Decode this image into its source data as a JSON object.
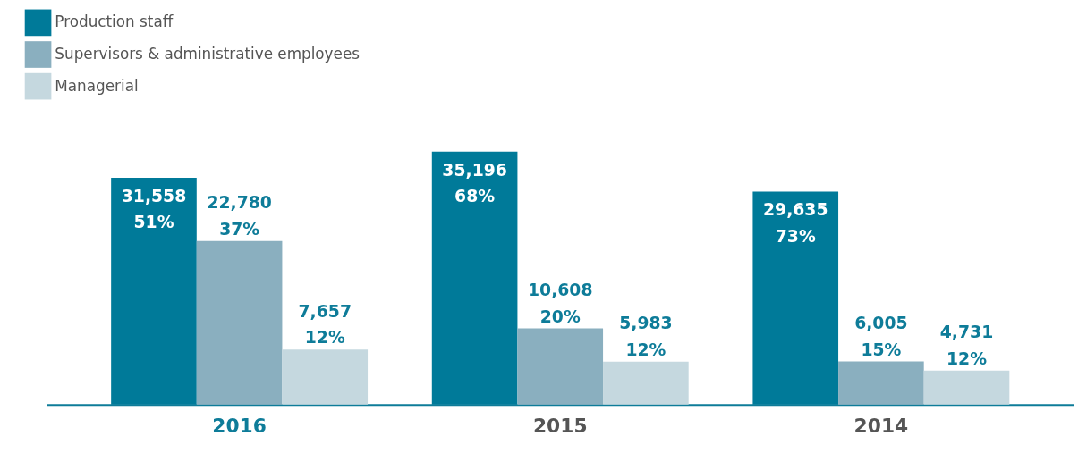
{
  "chart_data": {
    "type": "bar",
    "categories": [
      "2016",
      "2015",
      "2014"
    ],
    "series": [
      {
        "name": "Production staff",
        "color": "#007a99",
        "values": [
          31558,
          35196,
          29635
        ],
        "value_labels": [
          "31,558 51%",
          "35,196 68%",
          "29,635 73%"
        ]
      },
      {
        "name": "Supervisors & administrative employees",
        "color": "#8aafbf",
        "values": [
          22780,
          10608,
          6005
        ],
        "value_labels": [
          "22,780 37%",
          "10,608 20%",
          "6,005 15%"
        ]
      },
      {
        "name": "Managerial",
        "color": "#c5d8df",
        "values": [
          7657,
          5983,
          4731
        ],
        "value_labels": [
          "7,657 12%",
          "5,983 12%",
          "4,731 12%"
        ]
      }
    ],
    "legend": "top left",
    "grid": false
  }
}
